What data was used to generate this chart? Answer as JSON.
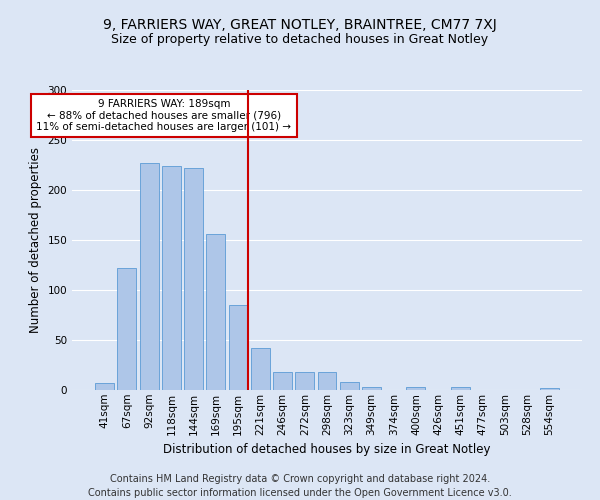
{
  "title1": "9, FARRIERS WAY, GREAT NOTLEY, BRAINTREE, CM77 7XJ",
  "title2": "Size of property relative to detached houses in Great Notley",
  "xlabel": "Distribution of detached houses by size in Great Notley",
  "ylabel": "Number of detached properties",
  "categories": [
    "41sqm",
    "67sqm",
    "92sqm",
    "118sqm",
    "144sqm",
    "169sqm",
    "195sqm",
    "221sqm",
    "246sqm",
    "272sqm",
    "298sqm",
    "323sqm",
    "349sqm",
    "374sqm",
    "400sqm",
    "426sqm",
    "451sqm",
    "477sqm",
    "503sqm",
    "528sqm",
    "554sqm"
  ],
  "values": [
    7,
    122,
    227,
    224,
    222,
    156,
    85,
    42,
    18,
    18,
    18,
    8,
    3,
    0,
    3,
    0,
    3,
    0,
    0,
    0,
    2
  ],
  "bar_color": "#aec6e8",
  "bar_edge_color": "#5b9bd5",
  "vline_x_index": 6,
  "vline_color": "#cc0000",
  "annotation_text": "9 FARRIERS WAY: 189sqm\n← 88% of detached houses are smaller (796)\n11% of semi-detached houses are larger (101) →",
  "annotation_box_color": "#ffffff",
  "annotation_box_edge": "#cc0000",
  "ylim": [
    0,
    300
  ],
  "yticks": [
    0,
    50,
    100,
    150,
    200,
    250,
    300
  ],
  "background_color": "#dce6f5",
  "plot_bg_color": "#dce6f5",
  "footer": "Contains HM Land Registry data © Crown copyright and database right 2024.\nContains public sector information licensed under the Open Government Licence v3.0.",
  "title1_fontsize": 10,
  "title2_fontsize": 9,
  "xlabel_fontsize": 8.5,
  "ylabel_fontsize": 8.5,
  "footer_fontsize": 7,
  "tick_fontsize": 7.5,
  "annotation_fontsize": 7.5
}
